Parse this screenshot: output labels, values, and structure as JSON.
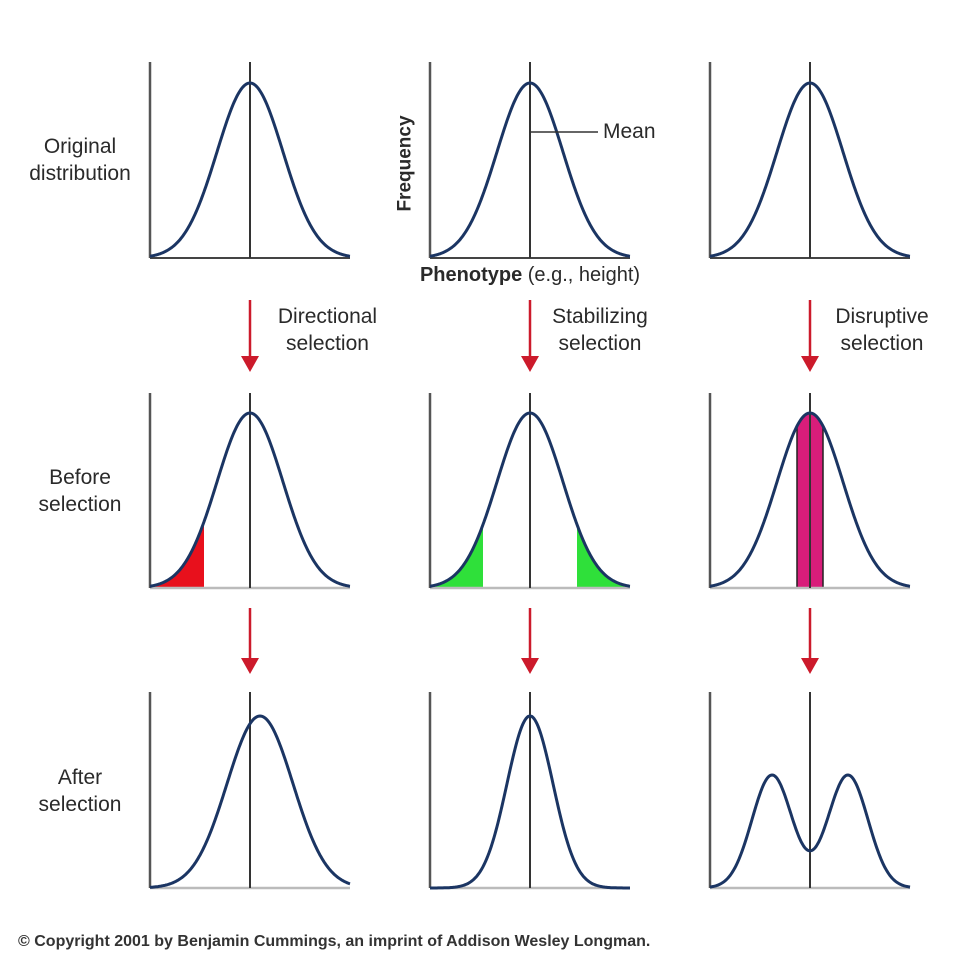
{
  "row_labels": {
    "original": [
      "Original",
      "distribution"
    ],
    "before": [
      "Before",
      "selection"
    ],
    "after": [
      "After",
      "selection"
    ]
  },
  "axis": {
    "frequency": "Frequency",
    "phenotype_bold": "Phenotype",
    "phenotype_rest": " (e.g., height)",
    "mean": "Mean"
  },
  "selection_types": [
    [
      "Directional",
      "selection"
    ],
    [
      "Stabilizing",
      "selection"
    ],
    [
      "Disruptive",
      "selection"
    ]
  ],
  "copyright": "© Copyright 2001 by Benjamin Cummings, an imprint of Addison Wesley Longman.",
  "colors": {
    "curve": "#1b3563",
    "axis": "#555555",
    "baseline": "#bbbbbb",
    "arrow": "#cc1a2b",
    "directional_fill": "#e8101c",
    "stabilizing_fill": "#2fe03a",
    "disruptive_fill": "#d81d7a"
  }
}
